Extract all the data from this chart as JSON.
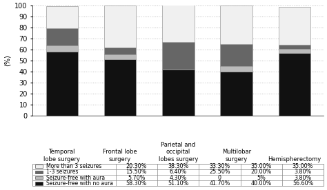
{
  "categories": [
    "Temporal\nlobe surgery",
    "Frontal lobe\nsurgery",
    "Parietal and\noccipital\nlobes surgery",
    "Multilobar\nsurgery",
    "Hemispherectomy"
  ],
  "series": {
    "Seizure-free with no aura": [
      58.3,
      51.1,
      41.7,
      40.0,
      56.6
    ],
    "Seizure-free with aura": [
      5.7,
      4.3,
      0.0,
      5.0,
      3.8
    ],
    "1-3 seizures": [
      15.5,
      6.4,
      25.5,
      20.0,
      3.8
    ],
    "More than 3 seizures": [
      20.3,
      38.3,
      33.3,
      35.0,
      35.0
    ]
  },
  "colors": {
    "Seizure-free with no aura": "#111111",
    "Seizure-free with aura": "#bbbbbb",
    "1-3 seizures": "#666666",
    "More than 3 seizures": "#f0f0f0"
  },
  "legend_order": [
    "More than 3 seizures",
    "1-3 seizures",
    "Seizure-free with aura",
    "Seizure-free with no aura"
  ],
  "stack_order": [
    "Seizure-free with no aura",
    "Seizure-free with aura",
    "1-3 seizures",
    "More than 3 seizures"
  ],
  "ylabel": "(%)",
  "ylim": [
    0,
    100
  ],
  "yticks": [
    0,
    10,
    20,
    30,
    40,
    50,
    60,
    70,
    80,
    90,
    100
  ],
  "bar_width": 0.55,
  "grid_color": "#bbbbbb",
  "table_data": {
    "More than 3 seizures": [
      "20.30%",
      "38.30%",
      "33.30%",
      "35.00%",
      "35.00%"
    ],
    "1-3 seizures": [
      "15.50%",
      "6.40%",
      "25.50%",
      "20.00%",
      "3.80%"
    ],
    "Seizure-free with aura": [
      "5.70%",
      "4.30%",
      "0",
      "5%",
      "3.80%"
    ],
    "Seizure-free with no aura": [
      "58.30%",
      "51.10%",
      "41.70%",
      "40.00%",
      "56.60%"
    ]
  }
}
